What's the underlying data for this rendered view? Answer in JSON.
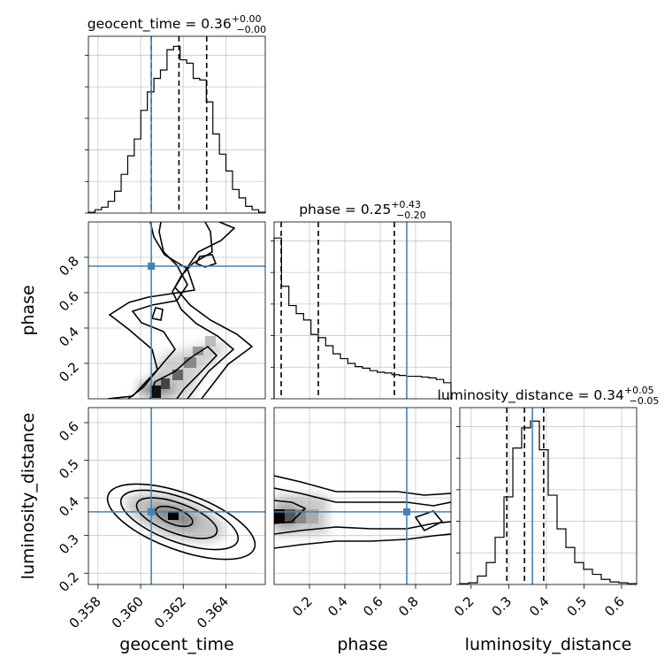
{
  "chart_data": {
    "type": "corner",
    "truth_color": "#4682b4",
    "parameters": [
      {
        "key": "geocent_time",
        "label": "geocent_time",
        "range": [
          0.35755,
          0.36585
        ],
        "ticks": [
          0.358,
          0.36,
          0.362,
          0.364
        ],
        "tick_labels": [
          "0.358",
          "0.360",
          "0.362",
          "0.364"
        ],
        "truth": 0.3605,
        "quantiles": [
          0.3605,
          0.3618,
          0.3631
        ],
        "title": {
          "base": "geocent_time = 0.36",
          "sup": "+0.00",
          "sub": "−0.00"
        }
      },
      {
        "key": "phase",
        "label": "phase",
        "range": [
          0.0,
          1.0
        ],
        "ticks": [
          0.2,
          0.4,
          0.6,
          0.8
        ],
        "tick_labels": [
          "0.2",
          "0.4",
          "0.6",
          "0.8"
        ],
        "truth": 0.75,
        "quantiles": [
          0.04,
          0.25,
          0.68
        ],
        "title": {
          "base": "phase = 0.25",
          "sup": "+0.43",
          "sub": "−0.20"
        }
      },
      {
        "key": "luminosity_distance",
        "label": "luminosity_distance",
        "range": [
          0.17,
          0.64
        ],
        "ticks": [
          0.2,
          0.3,
          0.4,
          0.5,
          0.6
        ],
        "tick_labels": [
          "0.2",
          "0.3",
          "0.4",
          "0.5",
          "0.6"
        ],
        "truth": 0.363,
        "quantiles": [
          0.295,
          0.342,
          0.393
        ],
        "title": {
          "base": "luminosity_distance = 0.34",
          "sup": "+0.05",
          "sub": "−0.05"
        }
      }
    ],
    "histograms": {
      "geocent_time": {
        "values": [
          0.005,
          0.02,
          0.035,
          0.07,
          0.13,
          0.23,
          0.34,
          0.44,
          0.61,
          0.72,
          0.8,
          0.85,
          0.97,
          0.99,
          0.91,
          0.89,
          0.8,
          0.79,
          0.66,
          0.47,
          0.35,
          0.25,
          0.14,
          0.09,
          0.04,
          0.02,
          0.005
        ],
        "ymax": 1.05
      },
      "phase": {
        "values": [
          1.0,
          0.7,
          0.58,
          0.53,
          0.49,
          0.4,
          0.38,
          0.33,
          0.28,
          0.25,
          0.22,
          0.2,
          0.19,
          0.175,
          0.165,
          0.16,
          0.15,
          0.145,
          0.14,
          0.14,
          0.135,
          0.13,
          0.12,
          0.1
        ],
        "ymax": 1.1
      },
      "luminosity_distance": {
        "values": [
          0.005,
          0.01,
          0.05,
          0.13,
          0.28,
          0.52,
          0.81,
          0.93,
          0.97,
          0.8,
          0.53,
          0.33,
          0.22,
          0.13,
          0.09,
          0.06,
          0.03,
          0.015,
          0.01,
          0.005
        ],
        "ymax": 1.05
      }
    },
    "pairs": [
      {
        "x": "geocent_time",
        "y": "phase"
      },
      {
        "x": "geocent_time",
        "y": "luminosity_distance"
      },
      {
        "x": "phase",
        "y": "luminosity_distance"
      }
    ],
    "grid": true
  }
}
